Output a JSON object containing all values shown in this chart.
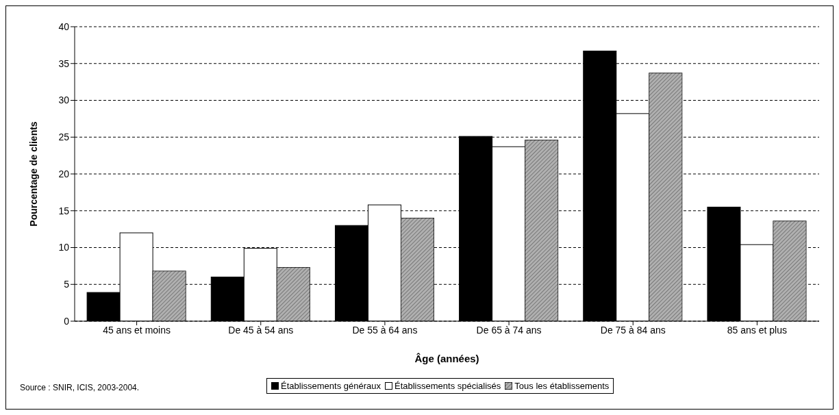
{
  "chart_data": {
    "type": "bar",
    "xlabel": "Âge (années)",
    "ylabel": "Pourcentage de clients",
    "categories": [
      "45 ans et moins",
      "De 45 à 54 ans",
      "De 55 à 64 ans",
      "De 65 à 74 ans",
      "De 75 à 84 ans",
      "85 ans et plus"
    ],
    "series": [
      {
        "name": "Établissements généraux",
        "color": "#000000",
        "values": [
          3.9,
          6.0,
          13.0,
          25.1,
          36.7,
          15.5
        ]
      },
      {
        "name": "Établissements spécialisés",
        "color": "#ffffff",
        "values": [
          12.0,
          9.9,
          15.8,
          23.7,
          28.2,
          10.4
        ]
      },
      {
        "name": "Tous les établissements",
        "color": "#b0b0b0",
        "values": [
          6.8,
          7.3,
          14.0,
          24.6,
          33.7,
          13.6
        ]
      }
    ],
    "ylim": [
      0,
      40
    ],
    "yticks": [
      0,
      5,
      10,
      15,
      20,
      25,
      30,
      35,
      40
    ],
    "grid": "y",
    "legend": "bottom",
    "annotations": [
      "Source : SNIR, ICIS, 2003-2004."
    ]
  }
}
